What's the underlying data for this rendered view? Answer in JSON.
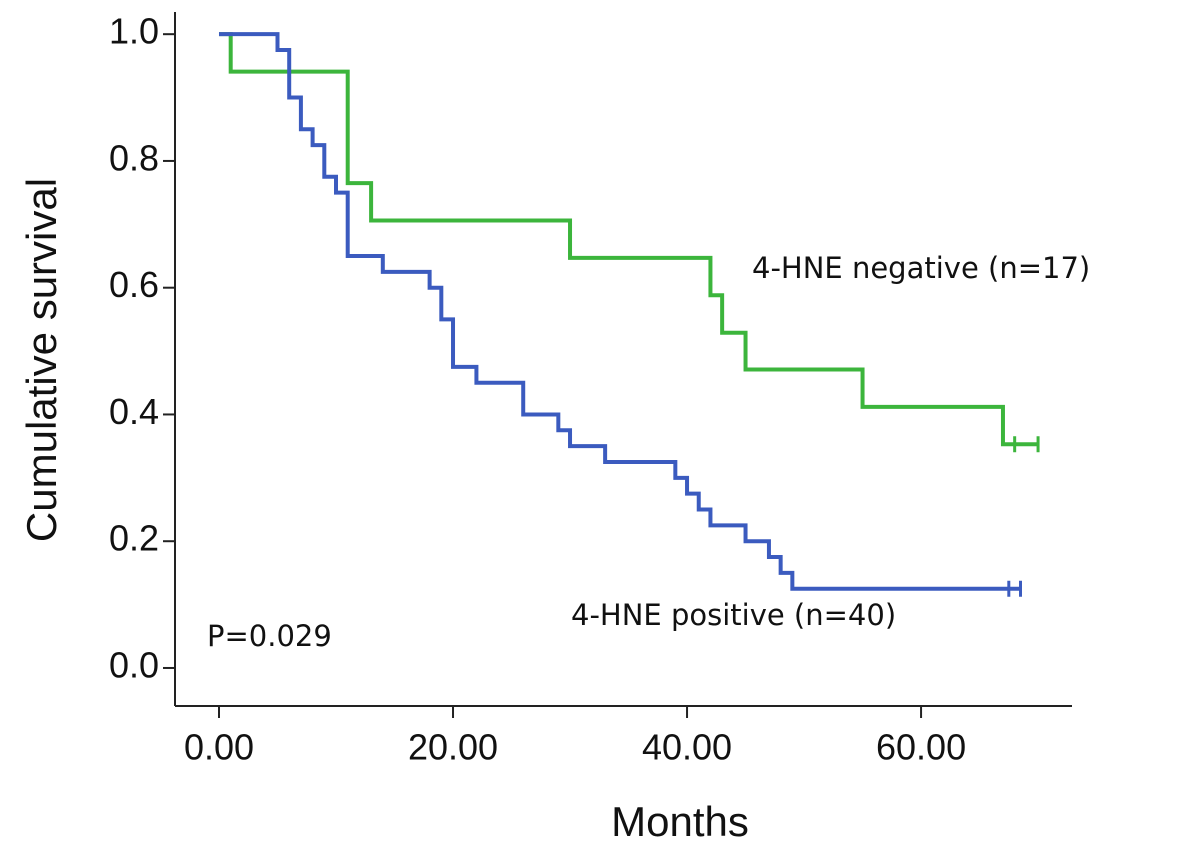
{
  "chart_data": {
    "type": "step",
    "x_label": "Months",
    "y_label": "Cumulative survival",
    "annotation": "P=0.029",
    "xlim": [
      -3.76,
      72.9
    ],
    "ylim": [
      -0.06,
      1.035
    ],
    "xticks": [
      {
        "value": 0,
        "label": "0.00"
      },
      {
        "value": 20,
        "label": "20.00"
      },
      {
        "value": 40,
        "label": "40.00"
      },
      {
        "value": 60,
        "label": "60.00"
      }
    ],
    "yticks": [
      {
        "value": 0,
        "label": "0.0"
      },
      0.2,
      0.4,
      0.6,
      0.8,
      {
        "value": 1,
        "label": "1.0"
      }
    ],
    "grid": false,
    "series": [
      {
        "name": "4-HNE negative (n=17)",
        "color": "#3cb53c",
        "x": [
          0,
          1,
          11,
          13,
          30,
          42,
          43,
          45,
          55,
          67
        ],
        "values": [
          1,
          0.941,
          0.765,
          0.706,
          0.647,
          0.588,
          0.529,
          0.471,
          0.412,
          0.353
        ],
        "censored_x": [
          68,
          70
        ],
        "censored_values": [
          0.353,
          0.353
        ]
      },
      {
        "name": "4-HNE positive (n=40)",
        "color": "#3b5bbf",
        "x": [
          0,
          5,
          6,
          7,
          8,
          9,
          10,
          11,
          14,
          18,
          19,
          20,
          22,
          26,
          29,
          30,
          33,
          39,
          40,
          41,
          42,
          45,
          47,
          48,
          49
        ],
        "values": [
          1,
          0.975,
          0.9,
          0.85,
          0.825,
          0.775,
          0.75,
          0.65,
          0.625,
          0.6,
          0.55,
          0.475,
          0.45,
          0.4,
          0.375,
          0.35,
          0.325,
          0.3,
          0.275,
          0.25,
          0.225,
          0.2,
          0.175,
          0.15,
          0.125
        ],
        "censored_x": [
          67.5,
          68.5
        ],
        "censored_values": [
          0.125,
          0.125
        ]
      }
    ]
  }
}
